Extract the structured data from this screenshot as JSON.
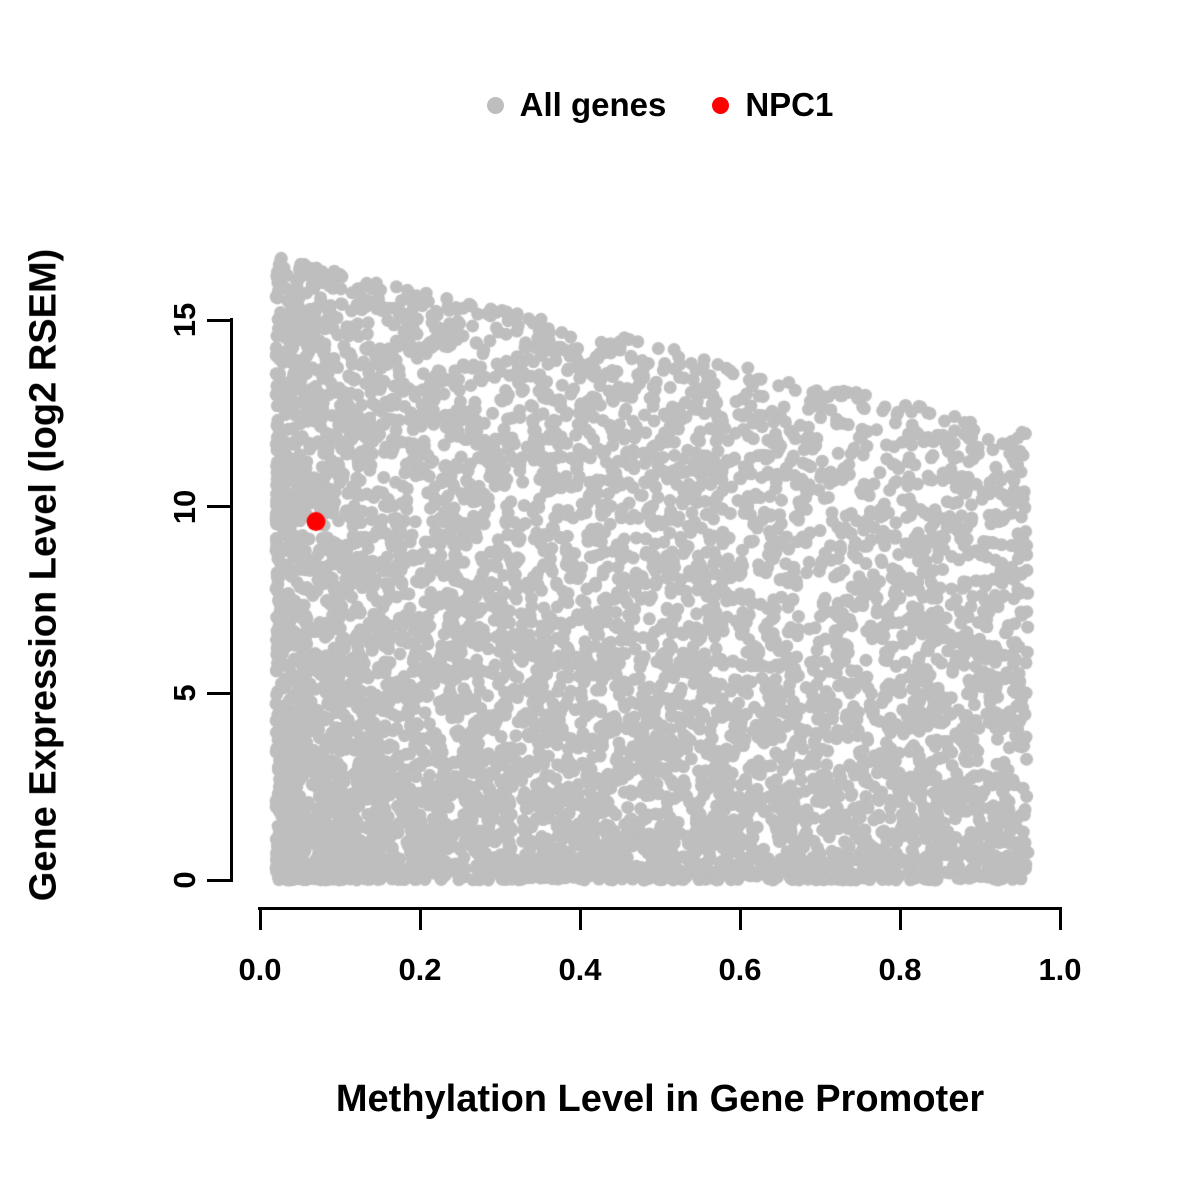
{
  "legend": {
    "position": "top-center",
    "items": [
      {
        "label": "All genes",
        "color": "#BEBEBE"
      },
      {
        "label": "NPC1",
        "color": "#FF0000"
      }
    ]
  },
  "chart_data": {
    "type": "scatter",
    "title": "",
    "xlabel": "Methylation Level in Gene Promoter",
    "ylabel": "Gene Expression Level (log2 RSEM)",
    "xlim": [
      0,
      1
    ],
    "ylim": [
      0,
      17
    ],
    "xticks": [
      "0.0",
      "0.2",
      "0.4",
      "0.6",
      "0.8",
      "1.0"
    ],
    "xtick_values": [
      0,
      0.2,
      0.4,
      0.6,
      0.8,
      1.0
    ],
    "yticks": [
      "0",
      "5",
      "10",
      "15"
    ],
    "ytick_values": [
      0,
      5,
      10,
      15
    ],
    "grid": false,
    "axis_color": "#000000",
    "series": [
      {
        "name": "All genes",
        "color": "#BEBEBE",
        "marker": "circle",
        "marker_radius": 6.5,
        "n_points": 6500,
        "distribution": {
          "comment": "dense cloud; x in [0.02,0.96] skewed left; expression upper envelope declines from ~16.8 at x=0 to ~12 at x=0.96; mass concentrated near y=0",
          "seed": 42,
          "x_range": [
            0.02,
            0.96
          ],
          "x_skew": 1.4,
          "y_envelope_at_x0": 16.8,
          "y_envelope_slope": -5.0,
          "y_skew": 1.45
        }
      },
      {
        "name": "NPC1",
        "color": "#FF0000",
        "marker": "circle",
        "marker_radius": 9.5,
        "points": [
          {
            "x": 0.07,
            "y": 9.6
          }
        ]
      }
    ]
  }
}
